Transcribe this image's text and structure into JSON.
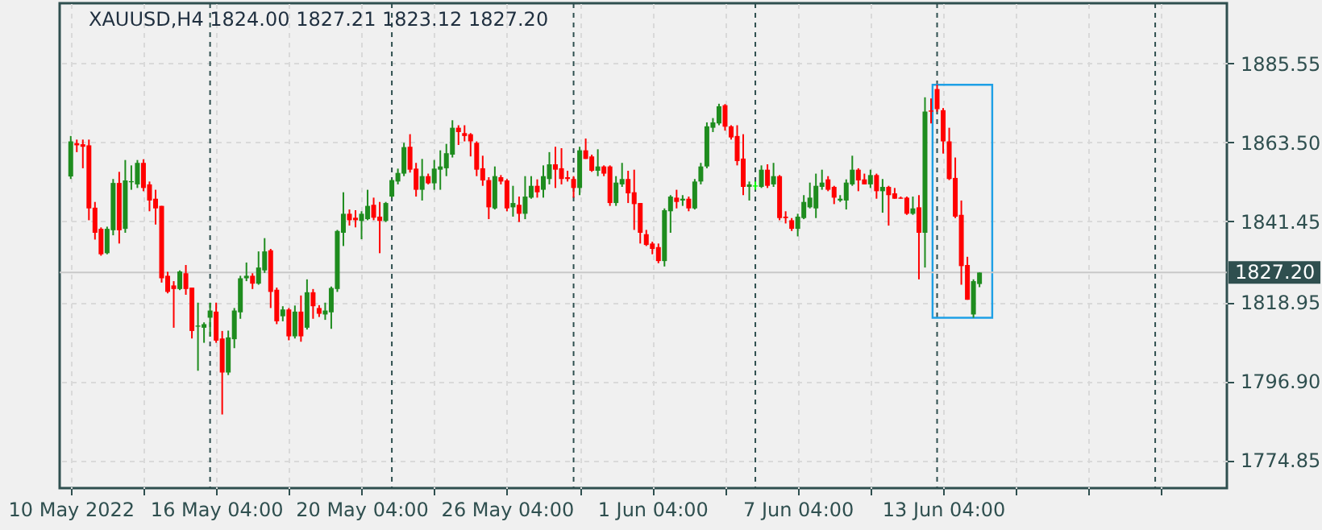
{
  "chart_data": {
    "type": "candlestick",
    "title": "XAUUSD,H4  1824.00 1827.21 1823.12 1827.20",
    "categories": [
      "10 May 2022",
      null,
      null,
      null,
      null,
      null,
      null,
      null,
      null,
      null,
      null,
      null,
      null,
      null,
      null,
      null,
      null,
      null,
      null,
      null,
      null,
      null,
      null,
      null,
      "16 May 04:00",
      null,
      null,
      null,
      null,
      null,
      null,
      null,
      null,
      null,
      null,
      null,
      null,
      null,
      null,
      null,
      null,
      null,
      null,
      null,
      null,
      null,
      null,
      null,
      "20 May 04:00",
      null,
      null,
      null,
      null,
      null,
      null,
      null,
      null,
      null,
      null,
      null,
      null,
      null,
      null,
      null,
      null,
      null,
      null,
      null,
      null,
      null,
      null,
      null,
      "26 May 04:00",
      null,
      null,
      null,
      null,
      null,
      null,
      null,
      null,
      null,
      null,
      null,
      null,
      null,
      null,
      null,
      null,
      null,
      null,
      null,
      null,
      null,
      null,
      null,
      "1 Jun 04:00",
      null,
      null,
      null,
      null,
      null,
      null,
      null,
      null,
      null,
      null,
      null,
      null,
      null,
      null,
      null,
      null,
      null,
      null,
      null,
      null,
      null,
      null,
      null,
      "7 Jun 04:00",
      null,
      null,
      null,
      null,
      null,
      null,
      null,
      null,
      null,
      null,
      null,
      null,
      null,
      null,
      null,
      null,
      null,
      null,
      null,
      null,
      null,
      null,
      null,
      "13 Jun 04:00",
      null,
      null,
      null,
      null,
      null,
      null,
      null,
      null,
      null,
      null,
      null,
      null,
      null,
      null,
      null,
      null,
      null,
      null,
      null,
      null,
      null,
      null,
      null,
      null,
      null,
      null,
      null,
      null,
      null,
      null,
      null,
      null,
      null,
      null,
      null,
      null,
      null,
      null,
      null,
      null,
      null,
      null,
      null,
      null,
      null
    ],
    "ohlc": [
      [
        1854.0,
        1865.3,
        1853.3,
        1863.8
      ],
      [
        1863.3,
        1864.3,
        1860.8,
        1862.7
      ],
      [
        1863.0,
        1864.3,
        1856.3,
        1862.3
      ],
      [
        1862.7,
        1864.3,
        1841.8,
        1845.1
      ],
      [
        1845.3,
        1846.9,
        1836.4,
        1838.3
      ],
      [
        1839.4,
        1839.8,
        1831.9,
        1832.3
      ],
      [
        1832.6,
        1840.0,
        1832.3,
        1839.4
      ],
      [
        1839.0,
        1853.3,
        1837.6,
        1852.2
      ],
      [
        1852.2,
        1855.3,
        1835.3,
        1839.0
      ],
      [
        1839.4,
        1858.6,
        1838.3,
        1852.9
      ],
      [
        1852.4,
        1857.1,
        1850.3,
        1852.7
      ],
      [
        1851.8,
        1858.6,
        1850.8,
        1857.8
      ],
      [
        1857.8,
        1858.8,
        1849.9,
        1850.8
      ],
      [
        1851.8,
        1852.6,
        1844.3,
        1847.3
      ],
      [
        1847.8,
        1850.3,
        1840.6,
        1845.1
      ],
      [
        1845.8,
        1845.8,
        1824.4,
        1825.6
      ],
      [
        1826.3,
        1827.4,
        1821.4,
        1821.8
      ],
      [
        1823.6,
        1824.8,
        1811.8,
        1822.6
      ],
      [
        1822.6,
        1827.8,
        1822.3,
        1827.5
      ],
      [
        1827.0,
        1829.3,
        1821.0,
        1822.6
      ],
      [
        1823.0,
        1823.0,
        1808.8,
        1810.9
      ],
      [
        1812.1,
        1818.8,
        1799.8,
        1812.4
      ],
      [
        1811.8,
        1813.3,
        1807.6,
        1812.8
      ],
      [
        1814.6,
        1818.8,
        1809.4,
        1816.6
      ],
      [
        1816.3,
        1818.8,
        1807.6,
        1808.2
      ],
      [
        1808.8,
        1810.9,
        1787.6,
        1799.3
      ],
      [
        1799.3,
        1811.0,
        1798.6,
        1809.1
      ],
      [
        1808.6,
        1817.3,
        1806.1,
        1816.6
      ],
      [
        1816.1,
        1826.3,
        1814.3,
        1825.6
      ],
      [
        1825.6,
        1830.0,
        1824.8,
        1826.3
      ],
      [
        1826.3,
        1827.0,
        1822.6,
        1824.1
      ],
      [
        1824.1,
        1833.1,
        1823.8,
        1828.6
      ],
      [
        1827.8,
        1836.8,
        1827.1,
        1833.1
      ],
      [
        1833.4,
        1833.8,
        1817.3,
        1821.8
      ],
      [
        1822.4,
        1823.0,
        1812.8,
        1813.6
      ],
      [
        1815.0,
        1817.8,
        1813.6,
        1816.9
      ],
      [
        1816.9,
        1817.3,
        1808.3,
        1809.4
      ],
      [
        1809.4,
        1818.0,
        1808.8,
        1816.3
      ],
      [
        1816.3,
        1820.8,
        1807.9,
        1809.4
      ],
      [
        1811.8,
        1825.3,
        1811.3,
        1821.7
      ],
      [
        1821.7,
        1822.6,
        1814.3,
        1817.8
      ],
      [
        1817.3,
        1818.1,
        1814.8,
        1815.7
      ],
      [
        1815.5,
        1818.8,
        1814.0,
        1816.6
      ],
      [
        1816.1,
        1823.3,
        1811.5,
        1822.9
      ],
      [
        1822.6,
        1839.1,
        1821.8,
        1838.8
      ],
      [
        1838.3,
        1849.6,
        1834.6,
        1843.6
      ],
      [
        1843.6,
        1844.8,
        1840.3,
        1841.8
      ],
      [
        1842.5,
        1844.6,
        1839.8,
        1841.8
      ],
      [
        1841.6,
        1844.3,
        1836.5,
        1843.6
      ],
      [
        1842.1,
        1850.3,
        1841.8,
        1845.8
      ],
      [
        1846.1,
        1848.1,
        1841.8,
        1842.5
      ],
      [
        1842.8,
        1846.9,
        1832.6,
        1841.6
      ],
      [
        1841.6,
        1846.9,
        1841.3,
        1846.6
      ],
      [
        1848.4,
        1853.3,
        1848.1,
        1853.0
      ],
      [
        1852.6,
        1856.2,
        1851.8,
        1855.0
      ],
      [
        1854.8,
        1863.4,
        1854.1,
        1862.2
      ],
      [
        1862.3,
        1865.8,
        1855.1,
        1855.9
      ],
      [
        1856.2,
        1857.8,
        1848.4,
        1850.3
      ],
      [
        1850.3,
        1858.9,
        1847.3,
        1854.1
      ],
      [
        1854.1,
        1854.8,
        1851.8,
        1852.1
      ],
      [
        1852.1,
        1858.6,
        1850.3,
        1856.2
      ],
      [
        1855.9,
        1861.3,
        1850.3,
        1856.8
      ],
      [
        1856.3,
        1863.1,
        1854.1,
        1860.5
      ],
      [
        1860.1,
        1869.7,
        1859.3,
        1867.6
      ],
      [
        1867.6,
        1868.3,
        1862.8,
        1866.4
      ],
      [
        1866.1,
        1868.3,
        1863.8,
        1865.3
      ],
      [
        1865.8,
        1866.1,
        1859.6,
        1863.8
      ],
      [
        1863.4,
        1863.8,
        1854.1,
        1855.9
      ],
      [
        1856.3,
        1859.8,
        1851.4,
        1852.9
      ],
      [
        1853.0,
        1853.8,
        1842.1,
        1845.4
      ],
      [
        1845.1,
        1856.8,
        1844.8,
        1854.1
      ],
      [
        1853.8,
        1854.4,
        1851.8,
        1852.6
      ],
      [
        1852.9,
        1853.3,
        1844.3,
        1845.1
      ],
      [
        1845.4,
        1851.4,
        1842.8,
        1846.6
      ],
      [
        1846.1,
        1848.4,
        1841.3,
        1843.6
      ],
      [
        1843.6,
        1854.1,
        1842.1,
        1848.4
      ],
      [
        1848.1,
        1854.1,
        1847.8,
        1851.4
      ],
      [
        1851.4,
        1853.2,
        1848.1,
        1849.6
      ],
      [
        1850.3,
        1857.1,
        1848.1,
        1854.1
      ],
      [
        1853.3,
        1860.8,
        1851.8,
        1857.4
      ],
      [
        1857.4,
        1862.3,
        1850.8,
        1855.9
      ],
      [
        1856.3,
        1861.9,
        1851.8,
        1853.3
      ],
      [
        1853.8,
        1855.6,
        1852.6,
        1853.3
      ],
      [
        1853.3,
        1854.1,
        1848.1,
        1850.8
      ],
      [
        1850.8,
        1862.3,
        1848.8,
        1861.3
      ],
      [
        1861.3,
        1864.6,
        1858.9,
        1858.9
      ],
      [
        1859.6,
        1860.1,
        1855.3,
        1855.6
      ],
      [
        1855.6,
        1861.6,
        1854.1,
        1856.8
      ],
      [
        1856.8,
        1857.1,
        1854.1,
        1854.8
      ],
      [
        1856.8,
        1857.1,
        1845.8,
        1846.6
      ],
      [
        1846.6,
        1854.1,
        1845.8,
        1852.3
      ],
      [
        1851.8,
        1857.8,
        1851.1,
        1853.3
      ],
      [
        1853.3,
        1855.6,
        1846.6,
        1849.3
      ],
      [
        1849.6,
        1855.9,
        1839.1,
        1846.3
      ],
      [
        1846.6,
        1846.6,
        1835.3,
        1838.3
      ],
      [
        1837.9,
        1839.1,
        1834.6,
        1834.9
      ],
      [
        1835.3,
        1835.8,
        1832.3,
        1833.8
      ],
      [
        1834.3,
        1835.3,
        1829.8,
        1830.4
      ],
      [
        1830.4,
        1845.1,
        1828.9,
        1844.6
      ],
      [
        1844.3,
        1848.8,
        1838.3,
        1848.4
      ],
      [
        1848.1,
        1850.3,
        1845.1,
        1846.9
      ],
      [
        1847.3,
        1848.8,
        1845.8,
        1847.8
      ],
      [
        1847.8,
        1848.4,
        1844.3,
        1845.1
      ],
      [
        1845.1,
        1853.3,
        1844.8,
        1852.6
      ],
      [
        1852.6,
        1857.8,
        1851.8,
        1856.8
      ],
      [
        1856.8,
        1869.1,
        1856.3,
        1868.0
      ],
      [
        1867.6,
        1870.3,
        1866.4,
        1869.1
      ],
      [
        1868.8,
        1874.3,
        1868.3,
        1873.6
      ],
      [
        1873.9,
        1874.2,
        1866.8,
        1867.9
      ],
      [
        1868.0,
        1868.3,
        1864.3,
        1864.9
      ],
      [
        1865.3,
        1868.3,
        1857.1,
        1858.3
      ],
      [
        1859.0,
        1865.8,
        1848.8,
        1851.1
      ],
      [
        1851.1,
        1852.6,
        1847.3,
        1851.8
      ],
      [
        1851.2,
        1852.6,
        1850.3,
        1851.5
      ],
      [
        1851.1,
        1857.1,
        1850.8,
        1855.9
      ],
      [
        1855.9,
        1857.4,
        1850.8,
        1851.4
      ],
      [
        1851.8,
        1857.8,
        1851.1,
        1854.1
      ],
      [
        1854.1,
        1854.4,
        1841.8,
        1842.4
      ],
      [
        1842.8,
        1844.3,
        1840.9,
        1842.4
      ],
      [
        1841.8,
        1842.4,
        1838.8,
        1839.4
      ],
      [
        1839.4,
        1843.6,
        1837.3,
        1842.8
      ],
      [
        1842.4,
        1848.8,
        1842.1,
        1846.9
      ],
      [
        1845.4,
        1852.3,
        1845.1,
        1848.1
      ],
      [
        1845.1,
        1854.8,
        1842.4,
        1851.4
      ],
      [
        1851.1,
        1855.9,
        1850.3,
        1852.3
      ],
      [
        1853.2,
        1854.1,
        1849.9,
        1850.3
      ],
      [
        1851.1,
        1851.4,
        1846.3,
        1848.1
      ],
      [
        1847.3,
        1848.8,
        1846.9,
        1847.8
      ],
      [
        1847.3,
        1853.2,
        1844.8,
        1852.3
      ],
      [
        1851.8,
        1859.8,
        1851.4,
        1855.9
      ],
      [
        1855.9,
        1856.3,
        1849.9,
        1852.9
      ],
      [
        1853.2,
        1854.8,
        1851.8,
        1851.8
      ],
      [
        1851.8,
        1855.9,
        1850.8,
        1854.4
      ],
      [
        1854.4,
        1854.8,
        1847.8,
        1849.9
      ],
      [
        1849.9,
        1853.3,
        1843.9,
        1851.1
      ],
      [
        1851.1,
        1851.4,
        1840.3,
        1848.8
      ],
      [
        1849.3,
        1850.8,
        1847.8,
        1847.8
      ],
      [
        1848.1,
        1848.4,
        1847.8,
        1847.8
      ],
      [
        1848.1,
        1848.4,
        1843.3,
        1843.6
      ],
      [
        1843.6,
        1848.4,
        1843.3,
        1845.1
      ],
      [
        1845.4,
        1848.8,
        1825.3,
        1838.3
      ],
      [
        1838.3,
        1876.1,
        1828.6,
        1872.1
      ],
      [
        1872.4,
        1875.8,
        1868.8,
        1872.1
      ],
      [
        1878.4,
        1879.6,
        1872.1,
        1872.8
      ],
      [
        1872.5,
        1873.1,
        1860.4,
        1863.8
      ],
      [
        1863.8,
        1867.6,
        1853.0,
        1853.3
      ],
      [
        1853.6,
        1859.3,
        1842.4,
        1842.8
      ],
      [
        1843.3,
        1847.3,
        1823.8,
        1829.0
      ],
      [
        1829.3,
        1831.6,
        1819.6,
        1819.6
      ],
      [
        1815.5,
        1825.3,
        1814.6,
        1824.8
      ],
      [
        1824.0,
        1827.21,
        1823.12,
        1827.2
      ],
      null,
      null,
      null,
      null,
      null,
      null,
      null,
      null,
      null,
      null,
      null,
      null,
      null,
      null,
      null,
      null,
      null,
      null,
      null,
      null,
      null,
      null,
      null,
      null,
      null,
      null,
      null,
      null,
      null,
      null,
      null,
      null,
      null,
      null,
      null,
      null,
      null,
      null,
      null
    ],
    "colors": [
      "#1e8c1e",
      "#ff0000",
      "#ff0000",
      "#ff0000",
      "#ff0000",
      "#ff0000",
      "#1e8c1e",
      "#1e8c1e",
      "#ff0000",
      "#1e8c1e",
      "#1e8c1e",
      "#1e8c1e",
      "#ff0000",
      "#ff0000",
      "#ff0000",
      "#ff0000",
      "#ff0000",
      "#ff0000",
      "#1e8c1e",
      "#ff0000",
      "#ff0000",
      "#1e8c1e",
      "#1e8c1e",
      "#1e8c1e",
      "#ff0000",
      "#ff0000",
      "#1e8c1e",
      "#1e8c1e",
      "#1e8c1e",
      "#1e8c1e",
      "#ff0000",
      "#1e8c1e",
      "#1e8c1e",
      "#ff0000",
      "#ff0000",
      "#1e8c1e",
      "#ff0000",
      "#1e8c1e",
      "#ff0000",
      "#1e8c1e",
      "#ff0000",
      "#ff0000",
      "#1e8c1e",
      "#1e8c1e",
      "#1e8c1e",
      "#1e8c1e",
      "#ff0000",
      "#ff0000",
      "#1e8c1e",
      "#1e8c1e",
      "#ff0000",
      "#ff0000",
      "#1e8c1e",
      "#1e8c1e",
      "#1e8c1e",
      "#1e8c1e",
      "#ff0000",
      "#ff0000",
      "#1e8c1e",
      "#ff0000",
      "#1e8c1e",
      "#1e8c1e",
      "#1e8c1e",
      "#1e8c1e",
      "#ff0000",
      "#ff0000",
      "#ff0000",
      "#ff0000",
      "#ff0000",
      "#ff0000",
      "#1e8c1e",
      "#ff0000",
      "#ff0000",
      "#1e8c1e",
      "#ff0000",
      "#1e8c1e",
      "#1e8c1e",
      "#ff0000",
      "#1e8c1e",
      "#1e8c1e",
      "#ff0000",
      "#ff0000",
      "#ff0000",
      "#ff0000",
      "#1e8c1e",
      "#ff0000",
      "#ff0000",
      "#1e8c1e",
      "#ff0000",
      "#ff0000",
      "#1e8c1e",
      "#1e8c1e",
      "#ff0000",
      "#ff0000",
      "#ff0000",
      "#ff0000",
      "#ff0000",
      "#ff0000",
      "#1e8c1e",
      "#1e8c1e",
      "#ff0000",
      "#1e8c1e",
      "#ff0000",
      "#1e8c1e",
      "#1e8c1e",
      "#1e8c1e",
      "#1e8c1e",
      "#1e8c1e",
      "#ff0000",
      "#ff0000",
      "#ff0000",
      "#ff0000",
      "#1e8c1e",
      "#00ff00",
      "#1e8c1e",
      "#ff0000",
      "#1e8c1e",
      "#ff0000",
      "#ff0000",
      "#ff0000",
      "#1e8c1e",
      "#1e8c1e",
      "#1e8c1e",
      "#1e8c1e",
      "#1e8c1e",
      "#ff0000",
      "#ff0000",
      "#1e8c1e",
      "#1e8c1e",
      "#1e8c1e",
      "#ff0000",
      "#ff0000",
      "#1e8c1e",
      "#ff0000",
      "#1e8c1e",
      "#ff0000",
      "#ff0000",
      "#ff0000",
      "#ff0000",
      "#1e8c1e",
      "#ff0000",
      "#1e8c1e",
      "#ff0000",
      "#ff0000",
      "#ff0000",
      "#ff0000",
      "#ff0000",
      "#ff0000",
      "#ff0000",
      "#1e8c1e",
      "#1e8c1e",
      null,
      null,
      null,
      null,
      null,
      null,
      null,
      null,
      null,
      null,
      null,
      null,
      null,
      null,
      null,
      null,
      null,
      null,
      null,
      null,
      null,
      null,
      null,
      null,
      null,
      null,
      null,
      null,
      null,
      null,
      null,
      null,
      null,
      null,
      null,
      null,
      null,
      null,
      null
    ],
    "ylim": [
      1767.05,
      1902.35
    ],
    "yticks": [
      {
        "value": 1774.85,
        "label": "1774.85"
      },
      {
        "value": 1796.9,
        "label": "1796.90"
      },
      {
        "value": 1818.95,
        "label": "1818.95"
      },
      {
        "value": 1841.45,
        "label": "1841.45"
      },
      {
        "value": 1863.5,
        "label": "1863.50"
      },
      {
        "value": 1885.55,
        "label": "1885.55"
      }
    ],
    "grid": true,
    "ref_lines": [
      {
        "axis": "y",
        "value": 1827.2,
        "label": "1827.20",
        "color": "#c8c8c8",
        "line_style": "solid"
      }
    ]
  }
}
